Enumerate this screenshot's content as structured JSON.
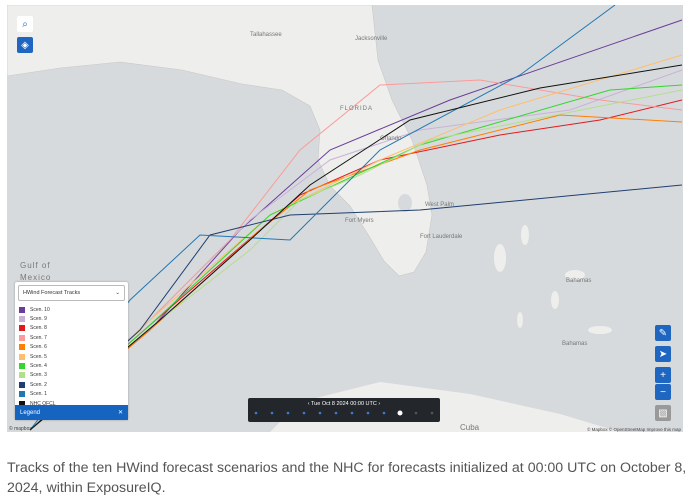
{
  "map": {
    "labels": {
      "gulf_1": "Gulf of",
      "gulf_2": "Mexico",
      "florida": "FLORIDA",
      "tallahassee": "Tallahassee",
      "jacksonville": "Jacksonville",
      "orlando": "Orlando",
      "fort_myers": "Fort Myers",
      "west_palm": "West Palm",
      "fort_lauderdale": "Fort Lauderdale",
      "bahamas_1": "Bahamas",
      "bahamas_2": "Bahamas",
      "cuba": "Cuba"
    },
    "legend": {
      "title": "HWind Forecast Tracks",
      "button": "Legend",
      "items": [
        {
          "label": "Scen. 10",
          "color": "#6a3d9a"
        },
        {
          "label": "Scen. 9",
          "color": "#cab2d6"
        },
        {
          "label": "Scen. 8",
          "color": "#e31a1c"
        },
        {
          "label": "Scen. 7",
          "color": "#fb9a99"
        },
        {
          "label": "Scen. 6",
          "color": "#ff7f00"
        },
        {
          "label": "Scen. 5",
          "color": "#fdbf6f"
        },
        {
          "label": "Scen. 4",
          "color": "#33d62c"
        },
        {
          "label": "Scen. 3",
          "color": "#b2df8a"
        },
        {
          "label": "Scen. 2",
          "color": "#1f3f6e"
        },
        {
          "label": "Scen. 1",
          "color": "#1f78b4"
        },
        {
          "label": "NHC OFCL",
          "color": "#111111"
        }
      ]
    },
    "timeline": {
      "date": "Tue Oct 8 2024 00:00 UTC"
    },
    "attribution": "© Mapbox © OpenStreetMap Improve this map",
    "logo": "© mapbox"
  },
  "caption": "Tracks of the ten HWind forecast scenarios and the NHC for forecasts initialized at 00:00 UTC on October 8, 2024, within ExposureIQ."
}
